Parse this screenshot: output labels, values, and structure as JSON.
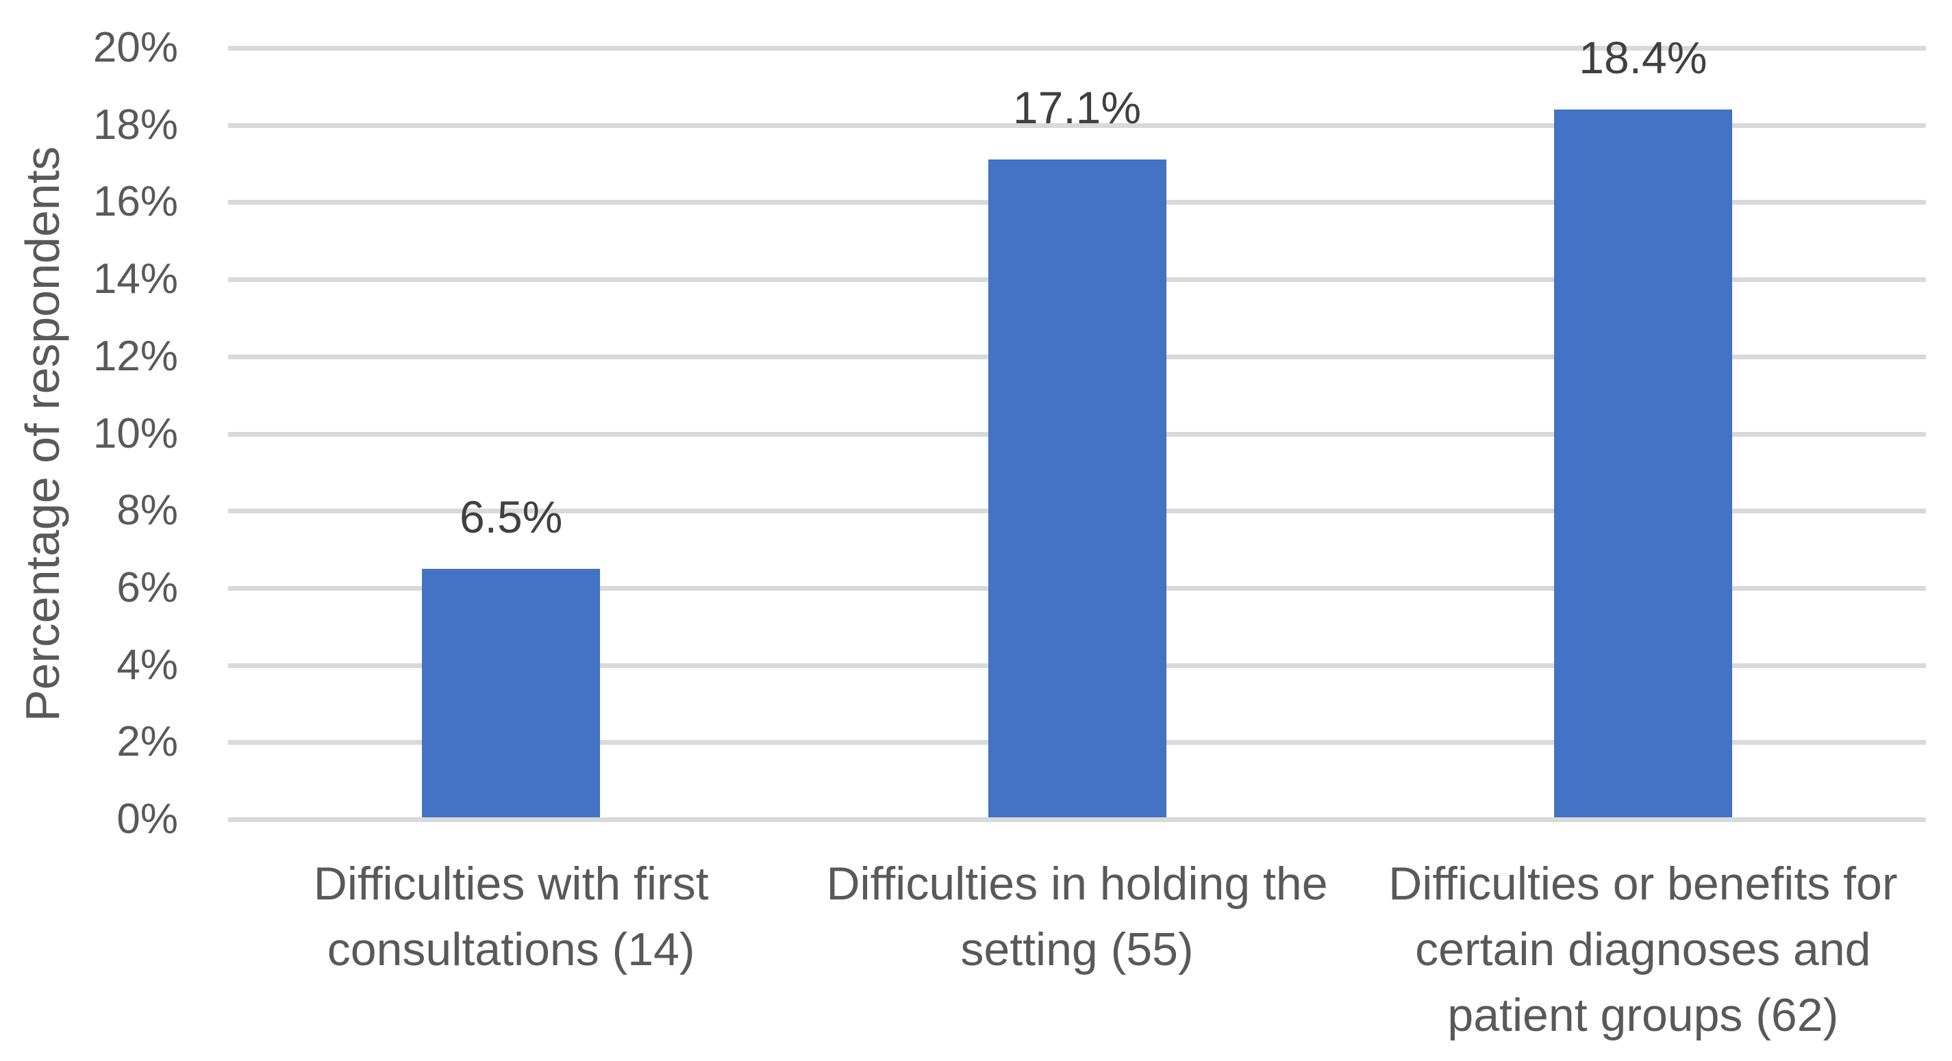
{
  "chart_data": {
    "type": "bar",
    "title": "",
    "ylabel": "Percentage of respondents",
    "xlabel": "",
    "ylim": [
      0,
      20
    ],
    "ytick_step": 2,
    "yticks": [
      {
        "value": 0,
        "label": "0%"
      },
      {
        "value": 2,
        "label": "2%"
      },
      {
        "value": 4,
        "label": "4%"
      },
      {
        "value": 6,
        "label": "6%"
      },
      {
        "value": 8,
        "label": "8%"
      },
      {
        "value": 10,
        "label": "10%"
      },
      {
        "value": 12,
        "label": "12%"
      },
      {
        "value": 14,
        "label": "14%"
      },
      {
        "value": 16,
        "label": "16%"
      },
      {
        "value": 18,
        "label": "18%"
      },
      {
        "value": 20,
        "label": "20%"
      }
    ],
    "categories": [
      "Difficulties with first\nconsultations (14)",
      "Difficulties in holding the\nsetting (55)",
      "Difficulties or benefits for\ncertain diagnoses and\npatient groups (62)"
    ],
    "values": [
      6.5,
      17.1,
      18.4
    ],
    "data_labels": [
      "6.5%",
      "17.1%",
      "18.4%"
    ],
    "grid": true,
    "legend_position": "none",
    "colors": {
      "bar": "#4472C4",
      "gridline": "#D9D9D9",
      "axis_line": "#D9D9D9",
      "tick_label": "#595959",
      "category_label": "#595959",
      "data_label": "#404040",
      "y_title": "#595959",
      "background": "#FFFFFF"
    }
  }
}
